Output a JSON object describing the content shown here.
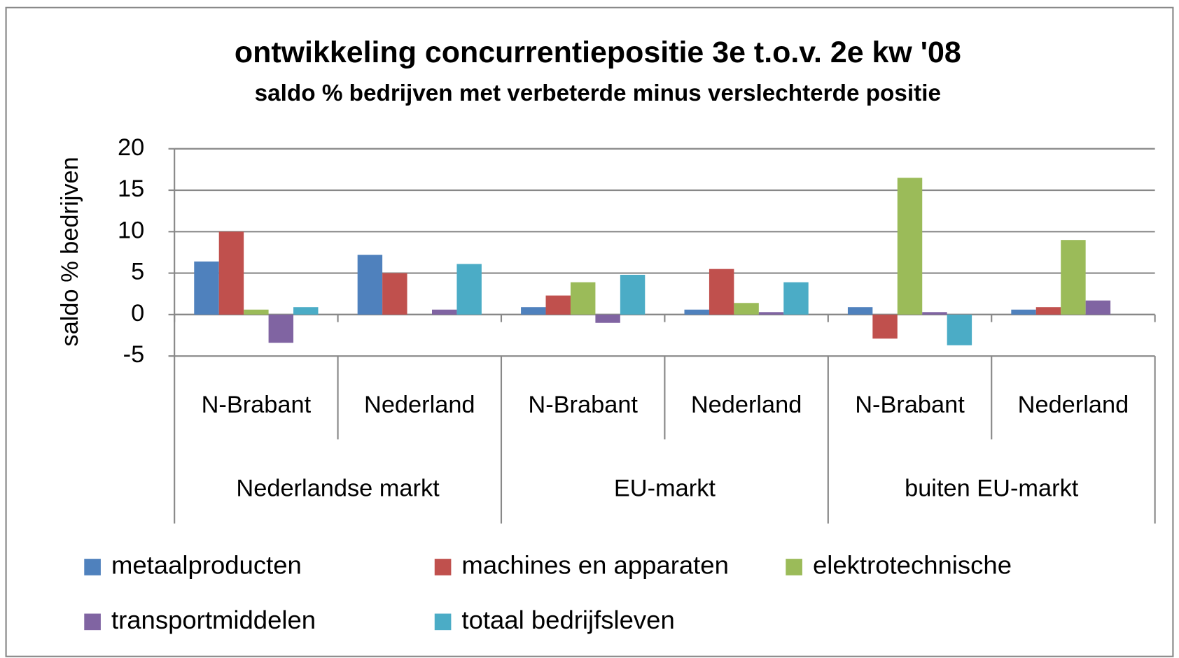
{
  "chart_data": {
    "type": "bar",
    "title": "ontwikkeling concurrentiepositie 3e t.o.v. 2e kw '08",
    "subtitle": "saldo % bedrijven met verbeterde minus verslechterde positie",
    "y_label": "saldo % bedrijven",
    "categories": [
      "N-Brabant",
      "Nederland",
      "N-Brabant",
      "Nederland",
      "N-Brabant",
      "Nederland"
    ],
    "category_groups": [
      "Nederlandse markt",
      "EU-markt",
      "buiten EU-markt"
    ],
    "series": [
      {
        "name": "metaalproducten",
        "color": "#4f81bd",
        "values": [
          6.4,
          7.2,
          0.9,
          0.6,
          0.9,
          0.6
        ]
      },
      {
        "name": "machines en apparaten",
        "color": "#c0504d",
        "values": [
          10,
          5.0,
          2.3,
          5.5,
          -2.9,
          0.9
        ]
      },
      {
        "name": "elektrotechnische",
        "color": "#9bbb59",
        "values": [
          0.6,
          0,
          3.9,
          1.4,
          16.5,
          9.0
        ]
      },
      {
        "name": "transportmiddelen",
        "color": "#8064a2",
        "values": [
          -3.4,
          0.6,
          -1.0,
          0.3,
          0.3,
          1.7
        ]
      },
      {
        "name": "totaal bedrijfsleven",
        "color": "#4bacc6",
        "values": [
          0.9,
          6.1,
          4.8,
          3.9,
          -3.7,
          0
        ]
      }
    ],
    "ylim": [
      -5,
      20
    ],
    "yticks": [
      -5,
      0,
      5,
      10,
      15,
      20
    ],
    "grid": true
  }
}
